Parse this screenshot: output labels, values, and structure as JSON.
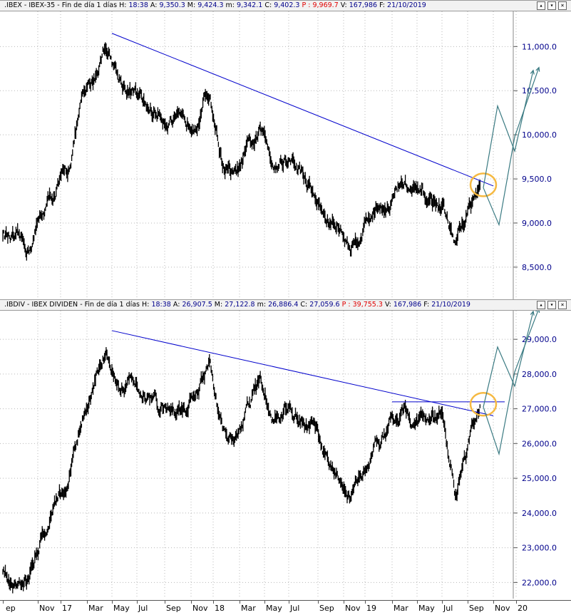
{
  "panels": [
    {
      "symbol": ".IBEX",
      "name": "IBEX-35",
      "period": "Fin de día 1 días",
      "h_label": "H:",
      "h_value": "18:38",
      "a_label": "A:",
      "a_value": "9,350.3",
      "m_label": "M:",
      "m_value": "9,424.3",
      "mi_label": "m:",
      "mi_value": "9,342.1",
      "c_label": "C:",
      "c_value": "9,402.3",
      "p_label": "P :",
      "p_value": "9,969.7",
      "v_label": "V:",
      "v_value": "167,986",
      "f_label": "F:",
      "f_value": "21/10/2019",
      "win_buttons": [
        "▴",
        "▾",
        "×"
      ]
    },
    {
      "symbol": ".IBDIV",
      "name": "IBEX DIVIDEN",
      "period": "Fin de día 1 días",
      "h_label": "H:",
      "h_value": "18:38",
      "a_label": "A:",
      "a_value": "26,907.5",
      "m_label": "M:",
      "m_value": "27,122.8",
      "mi_label": "m:",
      "mi_value": "26,886.4",
      "c_label": "C:",
      "c_value": "27,059.6",
      "p_label": "P :",
      "p_value": "39,755.3",
      "v_label": "V:",
      "v_value": "167,986",
      "f_label": "F:",
      "f_value": "21/10/2019",
      "win_buttons": [
        "▴",
        "▾",
        "×"
      ]
    }
  ],
  "x_axis_labels": [
    "ep",
    "Nov",
    "17",
    "Mar",
    "May",
    "Jul",
    "Sep",
    "Nov",
    "18",
    "Mar",
    "May",
    "Jul",
    "Sep",
    "Nov",
    "19",
    "Mar",
    "May",
    "Jul",
    "Sep",
    "Nov",
    "20"
  ],
  "colors": {
    "bars": "#000000",
    "trendline": "#0000cc",
    "projection": "#3a7a82",
    "highlight": "#f5b942",
    "axis_text": "#00008b"
  },
  "chart_data": [
    {
      "type": "line",
      "subtype": "daily price bars (OHLC)",
      "series": [
        {
          "name": "IBEX-35",
          "x": [
            "2016-09",
            "2016-10",
            "2016-11",
            "2016-12",
            "2017-01",
            "2017-02",
            "2017-03",
            "2017-04",
            "2017-05",
            "2017-06",
            "2017-07",
            "2017-08",
            "2017-09",
            "2017-10",
            "2017-11",
            "2017-12",
            "2018-01",
            "2018-02",
            "2018-03",
            "2018-04",
            "2018-05",
            "2018-06",
            "2018-07",
            "2018-08",
            "2018-09",
            "2018-10",
            "2018-11",
            "2018-12",
            "2019-01",
            "2019-02",
            "2019-03",
            "2019-04",
            "2019-05",
            "2019-06",
            "2019-07",
            "2019-08",
            "2019-09",
            "2019-10"
          ],
          "values": [
            8900,
            8750,
            8700,
            9100,
            9350,
            9550,
            10300,
            10600,
            11050,
            10650,
            10500,
            10300,
            10250,
            10200,
            10050,
            10250,
            10500,
            9700,
            9500,
            9800,
            10000,
            9700,
            9750,
            9600,
            9350,
            9050,
            8950,
            8700,
            9000,
            9200,
            9250,
            9450,
            9300,
            9250,
            9200,
            8750,
            9150,
            9400
          ]
        }
      ],
      "trendlines": [
        {
          "from": [
            "2017-05",
            11150
          ],
          "to": [
            "2019-11",
            9420
          ]
        }
      ],
      "projection": {
        "up_target": 10650,
        "down_target": 8980
      },
      "ylim": [
        8200,
        11350
      ],
      "yticks": [
        "11,000.0",
        "10,500.0",
        "10,000.0",
        "9,500.0",
        "9,000.0",
        "8,500.0"
      ],
      "ytick_values": [
        11000,
        10500,
        10000,
        9500,
        9000,
        8500
      ]
    },
    {
      "type": "line",
      "subtype": "daily price bars (OHLC)",
      "series": [
        {
          "name": "IBEX DIVIDEN",
          "x": [
            "2016-09",
            "2016-10",
            "2016-11",
            "2016-12",
            "2017-01",
            "2017-02",
            "2017-03",
            "2017-04",
            "2017-05",
            "2017-06",
            "2017-07",
            "2017-08",
            "2017-09",
            "2017-10",
            "2017-11",
            "2017-12",
            "2018-01",
            "2018-02",
            "2018-03",
            "2018-04",
            "2018-05",
            "2018-06",
            "2018-07",
            "2018-08",
            "2018-09",
            "2018-10",
            "2018-11",
            "2018-12",
            "2019-01",
            "2019-02",
            "2019-03",
            "2019-04",
            "2019-05",
            "2019-06",
            "2019-07",
            "2019-08",
            "2019-09",
            "2019-10"
          ],
          "values": [
            22300,
            22100,
            22200,
            23500,
            24300,
            24900,
            26600,
            27500,
            28700,
            28000,
            27900,
            27600,
            27000,
            27100,
            26900,
            27500,
            28200,
            26400,
            26000,
            26900,
            27700,
            26800,
            27000,
            26800,
            26400,
            25400,
            25000,
            24400,
            25200,
            26000,
            26600,
            27000,
            26600,
            26700,
            26800,
            24600,
            25800,
            27050
          ]
        }
      ],
      "trendlines": [
        {
          "from": [
            "2017-05",
            29250
          ],
          "to": [
            "2019-11",
            26800
          ]
        },
        {
          "from": [
            "2019-03",
            27200
          ],
          "to": [
            "2019-12",
            27200
          ]
        }
      ],
      "projection": {
        "up_target": 29600,
        "down_target": 25700
      },
      "ylim": [
        21700,
        29700
      ],
      "yticks": [
        "29,000.0",
        "28,000.0",
        "27,000.0",
        "26,000.0",
        "25,000.0",
        "24,000.0",
        "23,000.0",
        "22,000.0"
      ],
      "ytick_values": [
        29000,
        28000,
        27000,
        26000,
        25000,
        24000,
        23000,
        22000
      ]
    }
  ]
}
